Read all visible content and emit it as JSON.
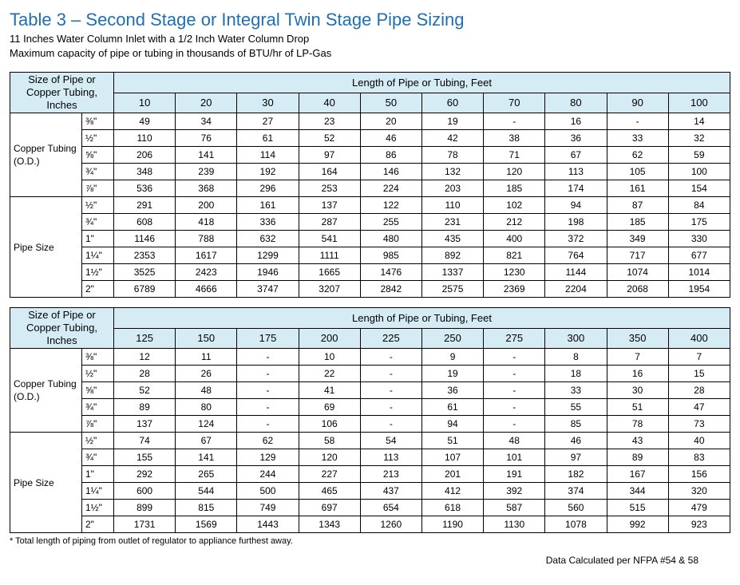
{
  "colors": {
    "title": "#1f6fb2",
    "header_bg": "#d6ecf5",
    "border": "#000000",
    "text": "#000000",
    "background": "#ffffff"
  },
  "typography": {
    "title_fontsize": 22,
    "subtitle_fontsize": 13,
    "cell_fontsize": 12,
    "footnote_fontsize": 11
  },
  "title": "Table 3 – Second Stage or Integral Twin Stage Pipe Sizing",
  "subtitle_line1": "11 Inches Water Column Inlet with a 1/2 Inch Water Column Drop",
  "subtitle_line2": "Maximum capacity of pipe or tubing in thousands of BTU/hr of LP-Gas",
  "header_left": "Size of Pipe or Copper Tubing, Inches",
  "header_right": "Length of Pipe or Tubing, Feet",
  "group_copper": "Copper Tubing (O.D.)",
  "group_pipe": "Pipe Size",
  "footnote": "* Total length of piping from outlet of regulator to appliance furthest away.",
  "calc_note": "Data Calculated per NFPA #54 & 58",
  "section1": {
    "lengths": [
      "10",
      "20",
      "30",
      "40",
      "50",
      "60",
      "70",
      "80",
      "90",
      "100"
    ],
    "copper_sizes": [
      "⅜\"",
      "½\"",
      "⅝\"",
      "¾\"",
      "⅞\""
    ],
    "pipe_sizes": [
      "½\"",
      "¾\"",
      "1\"",
      "1¼\"",
      "1½\"",
      "2\""
    ],
    "copper_rows": [
      [
        "49",
        "34",
        "27",
        "23",
        "20",
        "19",
        "-",
        "16",
        "-",
        "14"
      ],
      [
        "110",
        "76",
        "61",
        "52",
        "46",
        "42",
        "38",
        "36",
        "33",
        "32"
      ],
      [
        "206",
        "141",
        "114",
        "97",
        "86",
        "78",
        "71",
        "67",
        "62",
        "59"
      ],
      [
        "348",
        "239",
        "192",
        "164",
        "146",
        "132",
        "120",
        "113",
        "105",
        "100"
      ],
      [
        "536",
        "368",
        "296",
        "253",
        "224",
        "203",
        "185",
        "174",
        "161",
        "154"
      ]
    ],
    "pipe_rows": [
      [
        "291",
        "200",
        "161",
        "137",
        "122",
        "110",
        "102",
        "94",
        "87",
        "84"
      ],
      [
        "608",
        "418",
        "336",
        "287",
        "255",
        "231",
        "212",
        "198",
        "185",
        "175"
      ],
      [
        "1146",
        "788",
        "632",
        "541",
        "480",
        "435",
        "400",
        "372",
        "349",
        "330"
      ],
      [
        "2353",
        "1617",
        "1299",
        "1111",
        "985",
        "892",
        "821",
        "764",
        "717",
        "677"
      ],
      [
        "3525",
        "2423",
        "1946",
        "1665",
        "1476",
        "1337",
        "1230",
        "1144",
        "1074",
        "1014"
      ],
      [
        "6789",
        "4666",
        "3747",
        "3207",
        "2842",
        "2575",
        "2369",
        "2204",
        "2068",
        "1954"
      ]
    ]
  },
  "section2": {
    "lengths": [
      "125",
      "150",
      "175",
      "200",
      "225",
      "250",
      "275",
      "300",
      "350",
      "400"
    ],
    "copper_sizes": [
      "⅜\"",
      "½\"",
      "⅝\"",
      "¾\"",
      "⅞\""
    ],
    "pipe_sizes": [
      "½\"",
      "¾\"",
      "1\"",
      "1¼\"",
      "1½\"",
      "2\""
    ],
    "copper_rows": [
      [
        "12",
        "11",
        "-",
        "10",
        "-",
        "9",
        "-",
        "8",
        "7",
        "7"
      ],
      [
        "28",
        "26",
        "-",
        "22",
        "-",
        "19",
        "-",
        "18",
        "16",
        "15"
      ],
      [
        "52",
        "48",
        "-",
        "41",
        "-",
        "36",
        "-",
        "33",
        "30",
        "28"
      ],
      [
        "89",
        "80",
        "-",
        "69",
        "-",
        "61",
        "-",
        "55",
        "51",
        "47"
      ],
      [
        "137",
        "124",
        "-",
        "106",
        "-",
        "94",
        "-",
        "85",
        "78",
        "73"
      ]
    ],
    "pipe_rows": [
      [
        "74",
        "67",
        "62",
        "58",
        "54",
        "51",
        "48",
        "46",
        "43",
        "40"
      ],
      [
        "155",
        "141",
        "129",
        "120",
        "113",
        "107",
        "101",
        "97",
        "89",
        "83"
      ],
      [
        "292",
        "265",
        "244",
        "227",
        "213",
        "201",
        "191",
        "182",
        "167",
        "156"
      ],
      [
        "600",
        "544",
        "500",
        "465",
        "437",
        "412",
        "392",
        "374",
        "344",
        "320"
      ],
      [
        "899",
        "815",
        "749",
        "697",
        "654",
        "618",
        "587",
        "560",
        "515",
        "479"
      ],
      [
        "1731",
        "1569",
        "1443",
        "1343",
        "1260",
        "1190",
        "1130",
        "1078",
        "992",
        "923"
      ]
    ]
  }
}
